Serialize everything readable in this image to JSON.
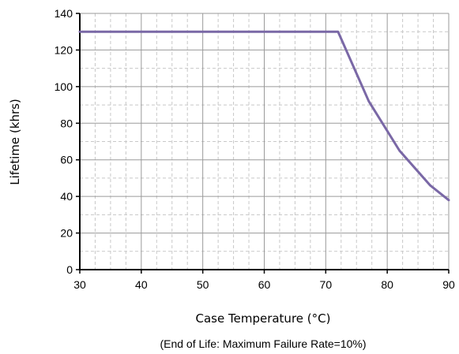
{
  "chart_data": {
    "type": "line",
    "xlabel": "Case Temperature (°C)",
    "ylabel": "Lifetime (khrs)",
    "note": "(End of Life: Maximum Failure Rate=10%)",
    "xlim": [
      30,
      90
    ],
    "ylim": [
      0,
      140
    ],
    "x_ticks": [
      30,
      40,
      50,
      60,
      70,
      80,
      90
    ],
    "y_ticks": [
      0,
      20,
      40,
      60,
      80,
      100,
      120,
      140
    ],
    "x_minor_step": 2.5,
    "y_minor_step": 10,
    "grid": "major and minor (dashed minor)",
    "line_color": "#7A68A6",
    "series": [
      {
        "x": [
          30,
          72,
          77,
          82,
          87,
          90
        ],
        "y": [
          130,
          130,
          92,
          65,
          46,
          38
        ]
      }
    ]
  }
}
